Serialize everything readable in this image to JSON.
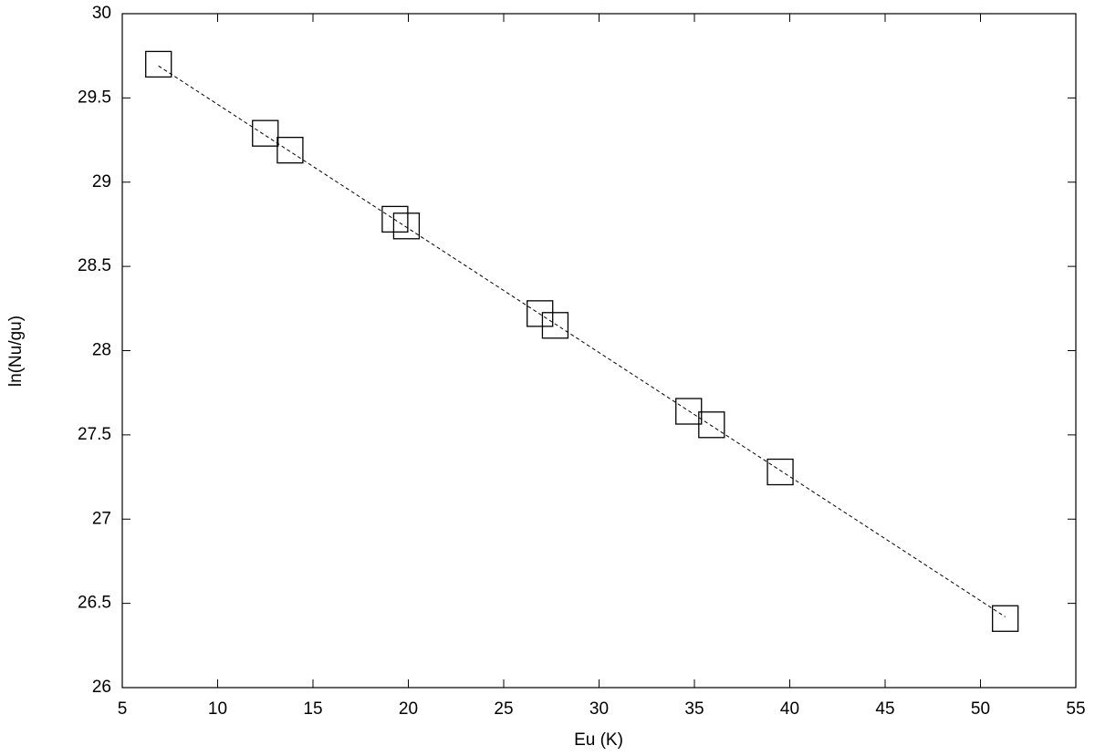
{
  "chart_data": {
    "type": "scatter",
    "x": [
      6.9,
      12.5,
      13.8,
      19.3,
      19.9,
      26.9,
      27.7,
      34.7,
      35.9,
      39.5,
      51.3
    ],
    "y": [
      29.7,
      29.29,
      29.19,
      28.78,
      28.74,
      28.22,
      28.15,
      27.64,
      27.56,
      27.28,
      26.41
    ],
    "fit_line": {
      "x": [
        6.9,
        51.3
      ],
      "y": [
        29.69,
        26.42
      ]
    },
    "color": "#000000",
    "xlabel": "Eu (K)",
    "ylabel": "ln(Nu/gu)",
    "xlim": [
      5,
      55
    ],
    "xticks": [
      5,
      10,
      15,
      20,
      25,
      30,
      35,
      40,
      45,
      50,
      55
    ],
    "ylim": [
      26,
      30
    ],
    "yticks": [
      26,
      26.5,
      27,
      27.5,
      28,
      28.5,
      29,
      29.5,
      30
    ],
    "grid": false
  }
}
